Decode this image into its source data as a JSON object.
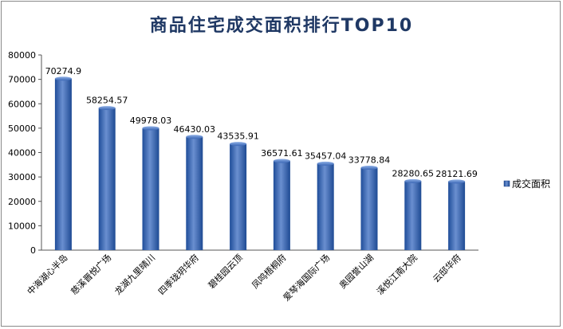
{
  "chart_data": {
    "type": "bar",
    "title": "商品住宅成交面积排行TOP10",
    "categories": [
      "中海湖心半岛",
      "慈溪晋悦广场",
      "龙湖九里晴川",
      "四季珑玥华府",
      "碧桂园云顶",
      "凤鸣梧桐府",
      "爱琴海国际广场",
      "奥园誉山湖",
      "溪悦江南大院",
      "云邸华府"
    ],
    "series": [
      {
        "name": "成交面积",
        "values": [
          70274.9,
          58254.57,
          49978.03,
          46430.03,
          43535.91,
          36571.61,
          35457.04,
          33778.84,
          28280.65,
          28121.69
        ]
      }
    ],
    "data_labels": [
      "70274.9",
      "58254.57",
      "49978.03",
      "46430.03",
      "43535.91",
      "36571.61",
      "35457.04",
      "33778.84",
      "28280.65",
      "28121.69"
    ],
    "yticks": [
      "0",
      "10000",
      "20000",
      "30000",
      "40000",
      "50000",
      "60000",
      "70000",
      "80000"
    ],
    "ylim": [
      0,
      80000
    ],
    "legend_position": "right",
    "grid": false,
    "bar_color": "#2e5aa8"
  }
}
